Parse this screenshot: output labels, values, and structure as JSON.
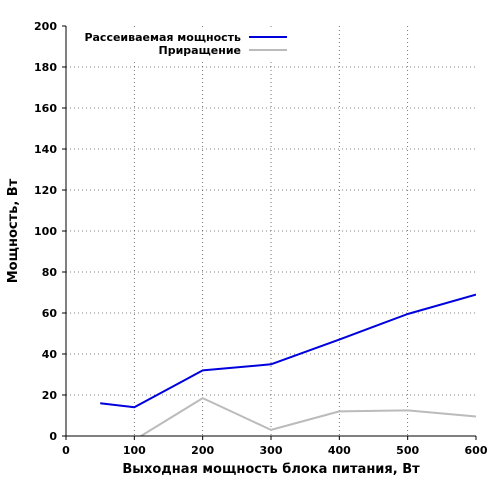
{
  "chart_data": {
    "type": "line",
    "xlabel": "Выходная мощность блока питания, Вт",
    "ylabel": "Мощность, Вт",
    "xlim": [
      0,
      600
    ],
    "ylim": [
      0,
      200
    ],
    "xticks": [
      "0",
      "100",
      "200",
      "300",
      "400",
      "500",
      "600"
    ],
    "yticks": [
      "0",
      "20",
      "40",
      "60",
      "80",
      "100",
      "120",
      "140",
      "160",
      "180",
      "200"
    ],
    "grid": true,
    "legend_position": "top-left",
    "series": [
      {
        "name": "Рассеиваемая мощность",
        "color": "#0000dd",
        "x": [
          50,
          100,
          200,
          300,
          400,
          500,
          600
        ],
        "y": [
          16,
          14,
          32,
          35,
          47,
          59.5,
          69
        ]
      },
      {
        "name": "Приращение",
        "color": "#bbbbbb",
        "x": [
          100,
          200,
          300,
          400,
          500,
          600
        ],
        "y": [
          -2,
          18.5,
          3,
          12,
          12.5,
          9.5
        ]
      }
    ]
  }
}
